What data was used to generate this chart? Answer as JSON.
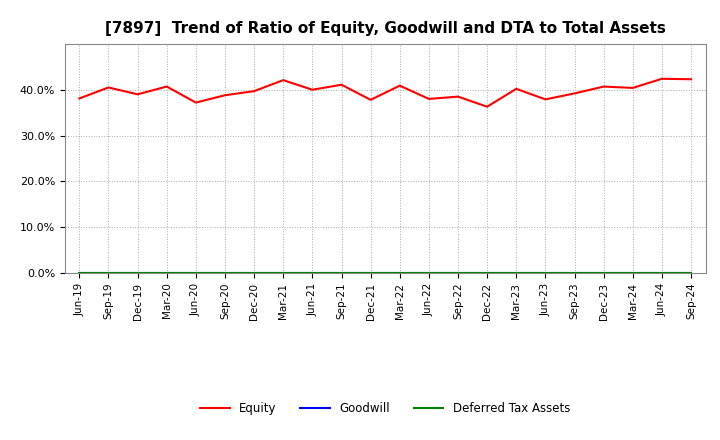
{
  "title": "[7897]  Trend of Ratio of Equity, Goodwill and DTA to Total Assets",
  "x_labels": [
    "Jun-19",
    "Sep-19",
    "Dec-19",
    "Mar-20",
    "Jun-20",
    "Sep-20",
    "Dec-20",
    "Mar-21",
    "Jun-21",
    "Sep-21",
    "Dec-21",
    "Mar-22",
    "Jun-22",
    "Sep-22",
    "Dec-22",
    "Mar-23",
    "Jun-23",
    "Sep-23",
    "Dec-23",
    "Mar-24",
    "Jun-24",
    "Sep-24"
  ],
  "equity": [
    0.381,
    0.405,
    0.39,
    0.407,
    0.372,
    0.388,
    0.397,
    0.421,
    0.4,
    0.411,
    0.378,
    0.409,
    0.38,
    0.385,
    0.363,
    0.402,
    0.379,
    0.392,
    0.407,
    0.404,
    0.424,
    0.423
  ],
  "goodwill": [
    0.0,
    0.0,
    0.0,
    0.0,
    0.0,
    0.0,
    0.0,
    0.0,
    0.0,
    0.0,
    0.0,
    0.0,
    0.0,
    0.0,
    0.0,
    0.0,
    0.0,
    0.0,
    0.0,
    0.0,
    0.0,
    0.0
  ],
  "dta": [
    0.0,
    0.0,
    0.0,
    0.0,
    0.0,
    0.0,
    0.0,
    0.0,
    0.0,
    0.0,
    0.0,
    0.0,
    0.0,
    0.0,
    0.0,
    0.0,
    0.0,
    0.0,
    0.0,
    0.0,
    0.0,
    0.0
  ],
  "equity_color": "#ff0000",
  "goodwill_color": "#0000ff",
  "dta_color": "#008000",
  "ylim": [
    0.0,
    0.5
  ],
  "yticks": [
    0.0,
    0.1,
    0.2,
    0.3,
    0.4
  ],
  "background_color": "#ffffff",
  "plot_bg_color": "#ffffff",
  "grid_color": "#aaaaaa",
  "title_fontsize": 11,
  "tick_fontsize": 7.5,
  "legend_labels": [
    "Equity",
    "Goodwill",
    "Deferred Tax Assets"
  ]
}
